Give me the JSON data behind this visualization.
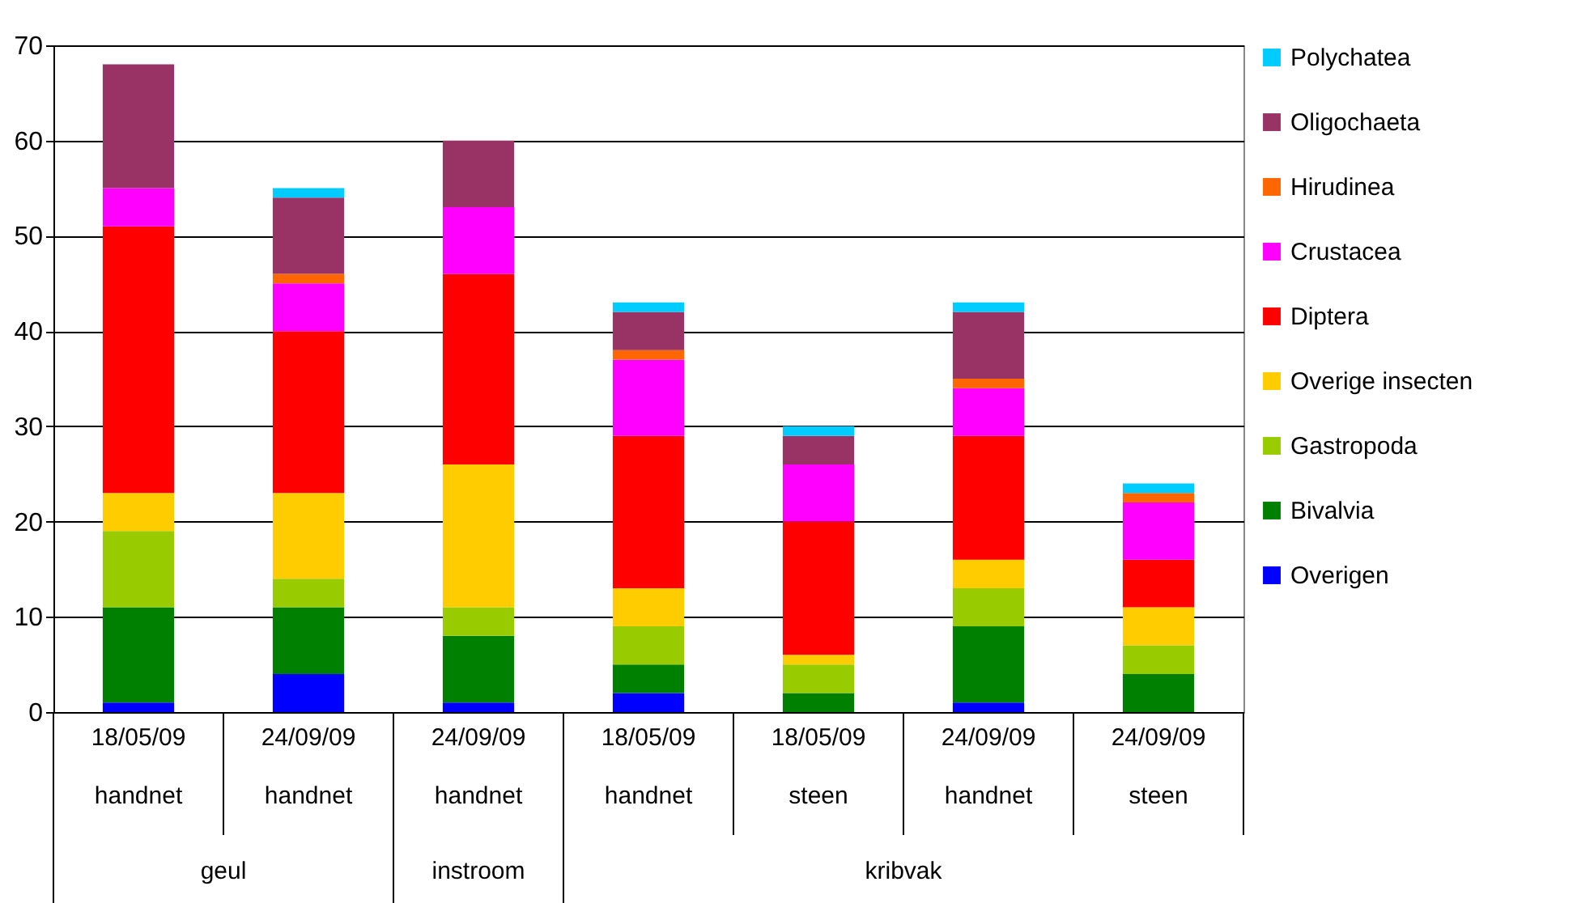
{
  "chart_data": {
    "type": "bar",
    "stacked": true,
    "categories": [
      "18/05/09 handnet",
      "24/09/09 handnet",
      "24/09/09 handnet",
      "18/05/09 handnet",
      "18/05/09 steen",
      "24/09/09 handnet",
      "24/09/09 steen"
    ],
    "series": [
      {
        "name": "Overigen",
        "color": "#0000ff",
        "values": [
          1,
          4,
          1,
          2,
          0,
          1,
          0
        ]
      },
      {
        "name": "Bivalvia",
        "color": "#008000",
        "values": [
          10,
          7,
          7,
          3,
          2,
          8,
          4
        ]
      },
      {
        "name": "Gastropoda",
        "color": "#99cc00",
        "values": [
          8,
          3,
          3,
          4,
          3,
          4,
          3
        ]
      },
      {
        "name": "Overige insecten",
        "color": "#ffcc00",
        "values": [
          4,
          9,
          15,
          4,
          1,
          3,
          4
        ]
      },
      {
        "name": "Diptera",
        "color": "#ff0000",
        "values": [
          28,
          17,
          20,
          16,
          14,
          13,
          5
        ]
      },
      {
        "name": "Crustacea",
        "color": "#ff00ff",
        "values": [
          4,
          5,
          7,
          8,
          6,
          5,
          6
        ]
      },
      {
        "name": "Hirudinea",
        "color": "#ff6600",
        "values": [
          0,
          1,
          0,
          1,
          0,
          1,
          1
        ]
      },
      {
        "name": "Oligochaeta",
        "color": "#993366",
        "values": [
          13,
          8,
          7,
          4,
          3,
          7,
          0
        ]
      },
      {
        "name": "Polychatea",
        "color": "#00ccff",
        "values": [
          0,
          1,
          0,
          1,
          1,
          1,
          1
        ]
      }
    ],
    "ylim": [
      0,
      70
    ],
    "yticks": [
      0,
      10,
      20,
      30,
      40,
      50,
      60,
      70
    ],
    "grid": "y",
    "legend": "right",
    "annotations": [
      "geul",
      "instroom",
      "kribvak"
    ]
  }
}
